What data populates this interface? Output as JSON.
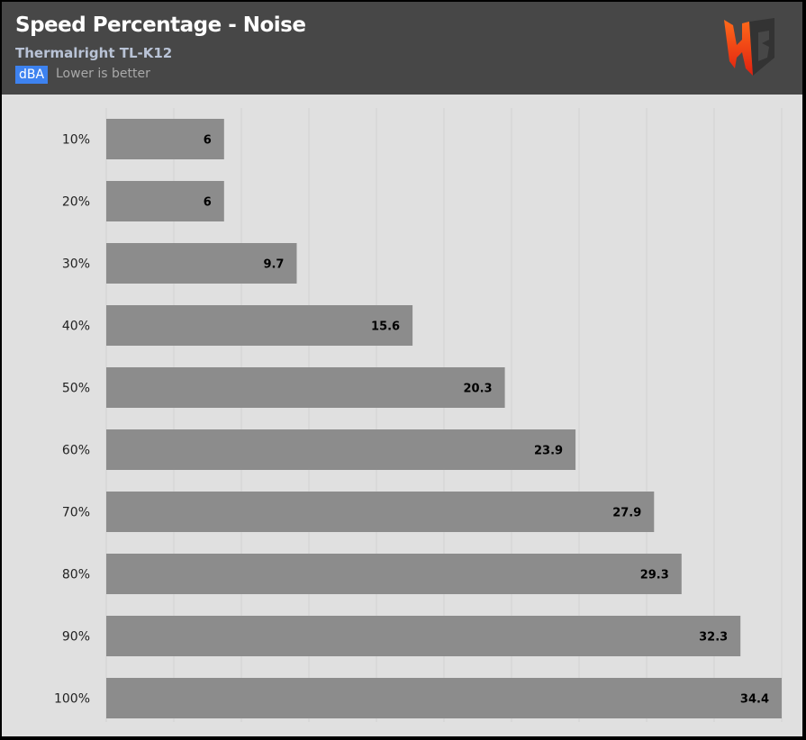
{
  "header": {
    "title": "Speed Percentage - Noise",
    "subtitle": "Thermalright TL-K12",
    "unit_badge": "dBA",
    "note": "Lower is better",
    "unit_badge_color": "#3d82f0",
    "logo": "HB"
  },
  "chart_data": {
    "type": "bar",
    "orientation": "horizontal",
    "title": "Speed Percentage - Noise",
    "subtitle": "Thermalright TL-K12",
    "unit": "dBA",
    "categories": [
      "10%",
      "20%",
      "30%",
      "40%",
      "50%",
      "60%",
      "70%",
      "80%",
      "90%",
      "100%"
    ],
    "values": [
      6,
      6,
      9.7,
      15.6,
      20.3,
      23.9,
      27.9,
      29.3,
      32.3,
      34.4
    ],
    "xlim": [
      0,
      34.4
    ],
    "grid": true,
    "bar_color": "#8c8c8c",
    "data_labels": true
  }
}
